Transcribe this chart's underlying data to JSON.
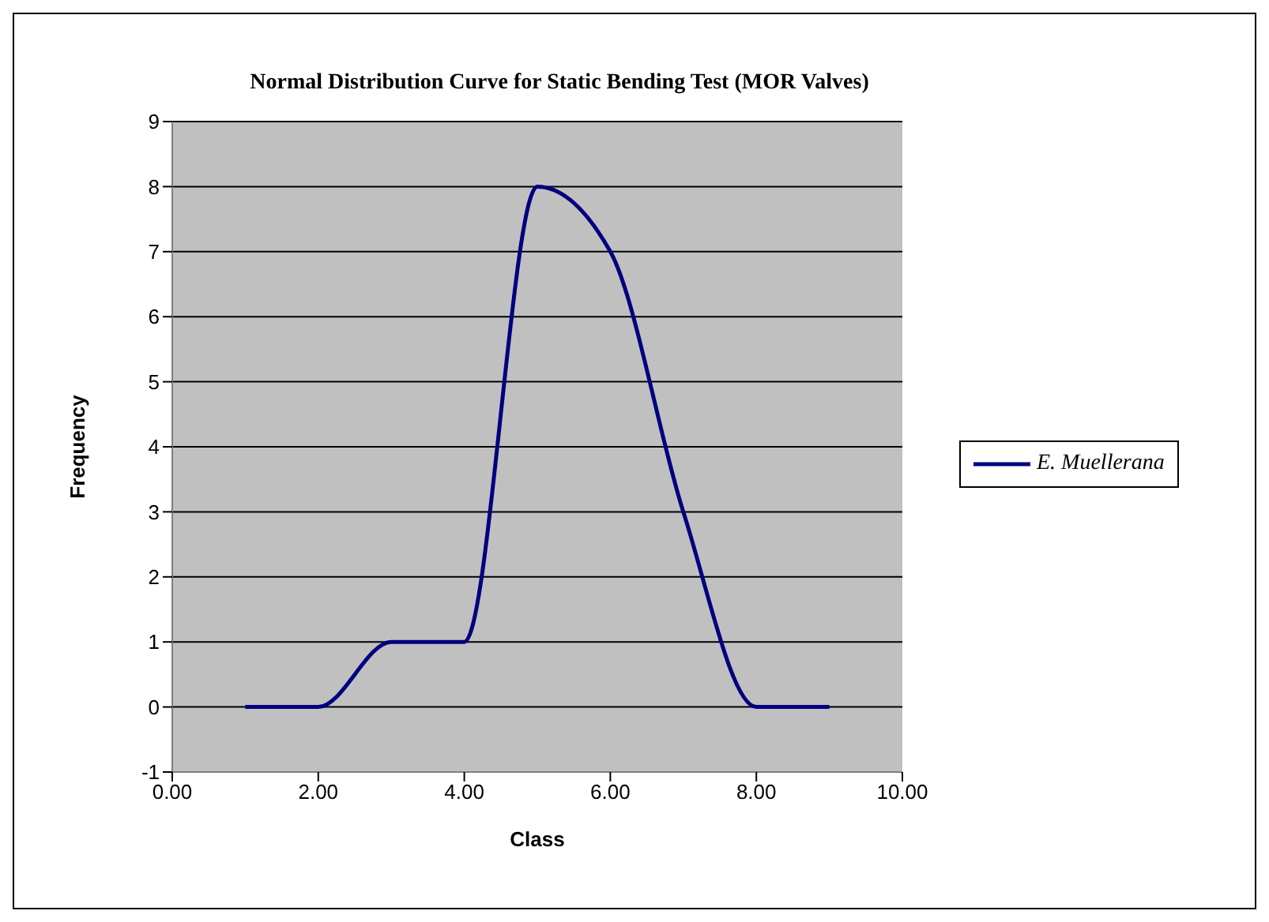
{
  "chart_data": {
    "type": "line",
    "title": "Normal Distribution Curve for Static Bending Test (MOR Valves)",
    "xlabel": "Class",
    "ylabel": "Frequency",
    "x": [
      1,
      2,
      3,
      4,
      5,
      6,
      7,
      8,
      9
    ],
    "series": [
      {
        "name": "E. Muellerana",
        "color": "#000080",
        "values": [
          0,
          0,
          1,
          1,
          8,
          7,
          3,
          0,
          0
        ]
      }
    ],
    "xlim": [
      0,
      10
    ],
    "xticks": [
      {
        "value": 0,
        "label": "0.00"
      },
      {
        "value": 2,
        "label": "2.00"
      },
      {
        "value": 4,
        "label": "4.00"
      },
      {
        "value": 6,
        "label": "6.00"
      },
      {
        "value": 8,
        "label": "8.00"
      },
      {
        "value": 10,
        "label": "10.00"
      }
    ],
    "ylim": [
      -1,
      9
    ],
    "yticks": [
      -1,
      0,
      1,
      2,
      3,
      4,
      5,
      6,
      7,
      8,
      9
    ],
    "grid": "y",
    "legend": "right",
    "marker": "none",
    "line_style": "solid"
  }
}
